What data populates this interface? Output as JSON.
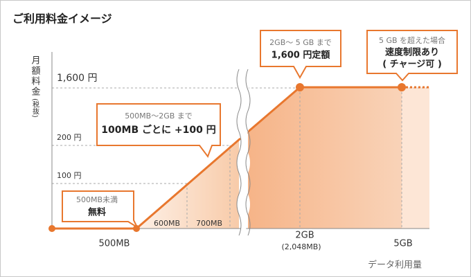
{
  "title": "ご利用料金イメージ",
  "y_axis": {
    "title": "月額料金",
    "note": "(税抜)",
    "labels": [
      "1,600 円",
      "200 円",
      "100 円"
    ]
  },
  "x_axis": {
    "title": "データ利用量",
    "labels": [
      "500MB",
      "600MB",
      "700MB",
      "2GB",
      "(2,048MB)",
      "5GB"
    ]
  },
  "callouts": [
    {
      "lines": [
        "500MB未満",
        "無料"
      ]
    },
    {
      "lines": [
        "500MB〜2GB まで",
        "100MB ごとに +100 円"
      ]
    },
    {
      "lines": [
        "2GB〜 5 GB まで",
        "1,600 円定額"
      ]
    },
    {
      "lines": [
        "5 GB を超えた場合",
        "速度制限あり",
        "( チャージ可 )"
      ]
    }
  ]
}
